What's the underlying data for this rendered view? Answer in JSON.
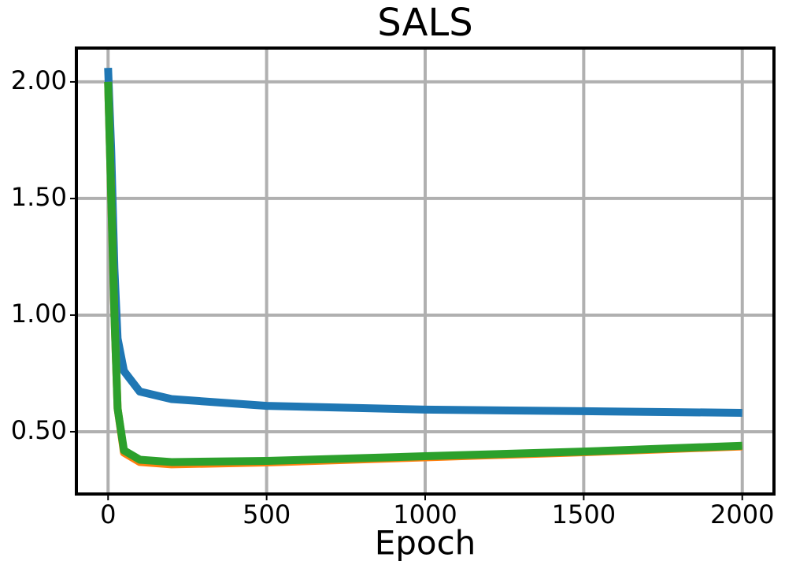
{
  "chart_data": {
    "type": "line",
    "title": "SALS",
    "x_label": "Epoch",
    "x": [
      0,
      10,
      20,
      30,
      50,
      100,
      200,
      500,
      1000,
      1500,
      2000
    ],
    "series": [
      {
        "color": "#1f77b4",
        "values": [
          2.06,
          1.7,
          1.2,
          0.9,
          0.76,
          0.672,
          0.64,
          0.611,
          0.595,
          0.588,
          0.581
        ]
      },
      {
        "color": "#ff7f0e",
        "values": [
          2.0,
          1.5,
          1.0,
          0.6,
          0.41,
          0.37,
          0.36,
          0.368,
          0.39,
          0.412,
          0.437
        ]
      },
      {
        "color": "#2ca02c",
        "values": [
          2.0,
          1.5,
          1.0,
          0.6,
          0.42,
          0.38,
          0.37,
          0.375,
          0.395,
          0.415,
          0.44
        ]
      }
    ],
    "xlim": [
      -100,
      2100
    ],
    "ylim": [
      0.233,
      2.145
    ],
    "xticks": [
      0,
      500,
      1000,
      1500,
      2000
    ],
    "yticks": [
      {
        "value": 0.5,
        "label": "0.50"
      },
      {
        "value": 1.0,
        "label": "1.00"
      },
      {
        "value": 1.5,
        "label": "1.50"
      },
      {
        "value": 2.0,
        "label": "2.00"
      }
    ],
    "grid": true
  }
}
